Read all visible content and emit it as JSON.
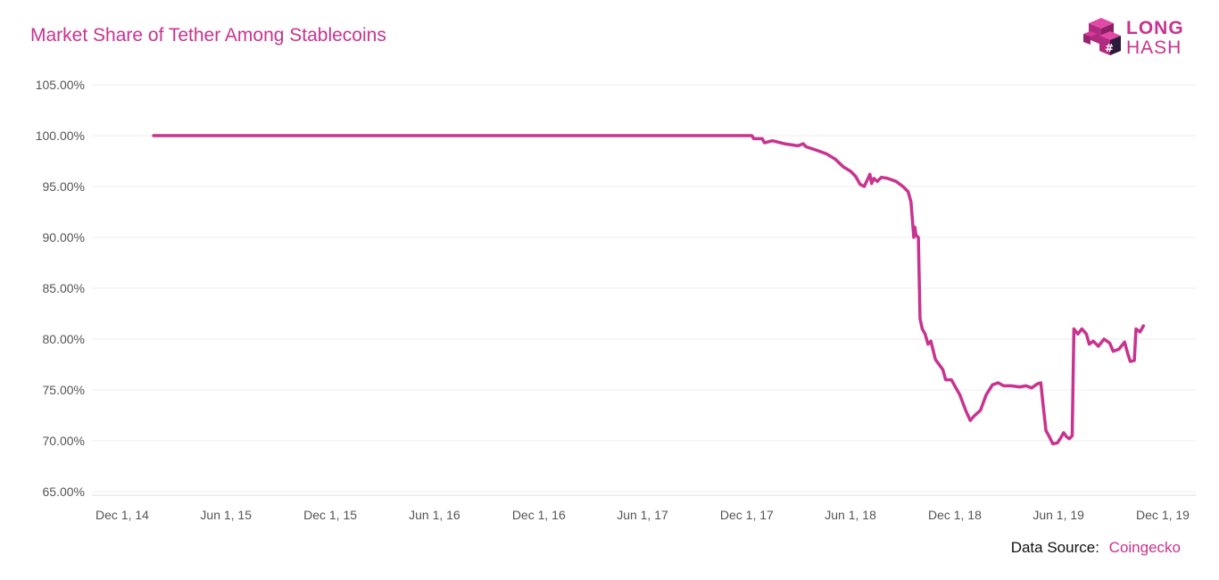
{
  "header": {
    "title": "Market Share of Tether Among Stablecoins"
  },
  "logo": {
    "line1": "LONG",
    "line2": "HASH",
    "icon": "cube-logo-icon",
    "color": "#c8338f"
  },
  "source": {
    "label": "Data Source:",
    "value": "Coingecko"
  },
  "chart_data": {
    "type": "line",
    "title": "Market Share of Tether Among Stablecoins",
    "xlabel": "",
    "ylabel": "",
    "xlim": [
      "2014-12-01",
      "2019-12-01"
    ],
    "ylim": [
      65,
      105
    ],
    "grid": true,
    "color": "#c8338f",
    "y_ticks": [
      {
        "value": 105,
        "label": "105.00%"
      },
      {
        "value": 100,
        "label": "100.00%"
      },
      {
        "value": 95,
        "label": "95.00%"
      },
      {
        "value": 90,
        "label": "90.00%"
      },
      {
        "value": 85,
        "label": "85.00%"
      },
      {
        "value": 80,
        "label": "80.00%"
      },
      {
        "value": 75,
        "label": "75.00%"
      },
      {
        "value": 70,
        "label": "70.00%"
      },
      {
        "value": 65,
        "label": "65.00%"
      }
    ],
    "x_ticks": [
      {
        "value": "2014-12-01",
        "label": "Dec 1, 14"
      },
      {
        "value": "2015-06-01",
        "label": "Jun 1, 15"
      },
      {
        "value": "2015-12-01",
        "label": "Dec 1, 15"
      },
      {
        "value": "2016-06-01",
        "label": "Jun 1, 16"
      },
      {
        "value": "2016-12-01",
        "label": "Dec 1, 16"
      },
      {
        "value": "2017-06-01",
        "label": "Jun 1, 17"
      },
      {
        "value": "2017-12-01",
        "label": "Dec 1, 17"
      },
      {
        "value": "2018-06-01",
        "label": "Jun 1, 18"
      },
      {
        "value": "2018-12-01",
        "label": "Dec 1, 18"
      },
      {
        "value": "2019-06-01",
        "label": "Jun 1, 19"
      },
      {
        "value": "2019-12-01",
        "label": "Dec 1, 19"
      }
    ],
    "series": [
      {
        "points": [
          [
            "2015-01-25",
            100.0
          ],
          [
            "2017-12-10",
            100.0
          ],
          [
            "2017-12-13",
            99.7
          ],
          [
            "2017-12-28",
            99.7
          ],
          [
            "2018-01-01",
            99.3
          ],
          [
            "2018-01-15",
            99.5
          ],
          [
            "2018-02-05",
            99.2
          ],
          [
            "2018-03-01",
            99.0
          ],
          [
            "2018-03-10",
            99.2
          ],
          [
            "2018-03-15",
            98.9
          ],
          [
            "2018-04-01",
            98.6
          ],
          [
            "2018-04-20",
            98.2
          ],
          [
            "2018-05-05",
            97.7
          ],
          [
            "2018-05-20",
            96.9
          ],
          [
            "2018-06-01",
            96.5
          ],
          [
            "2018-06-10",
            96.0
          ],
          [
            "2018-06-18",
            95.2
          ],
          [
            "2018-06-25",
            95.0
          ],
          [
            "2018-07-01",
            95.7
          ],
          [
            "2018-07-05",
            96.2
          ],
          [
            "2018-07-08",
            95.3
          ],
          [
            "2018-07-12",
            95.8
          ],
          [
            "2018-07-18",
            95.5
          ],
          [
            "2018-07-25",
            95.9
          ],
          [
            "2018-08-05",
            95.8
          ],
          [
            "2018-08-20",
            95.5
          ],
          [
            "2018-09-01",
            95.0
          ],
          [
            "2018-09-10",
            94.5
          ],
          [
            "2018-09-15",
            93.5
          ],
          [
            "2018-09-20",
            90.0
          ],
          [
            "2018-09-22",
            91.0
          ],
          [
            "2018-09-24",
            90.2
          ],
          [
            "2018-09-28",
            90.0
          ],
          [
            "2018-10-01",
            82.0
          ],
          [
            "2018-10-05",
            81.0
          ],
          [
            "2018-10-10",
            80.5
          ],
          [
            "2018-10-15",
            79.5
          ],
          [
            "2018-10-20",
            79.8
          ],
          [
            "2018-10-28",
            78.0
          ],
          [
            "2018-11-10",
            77.0
          ],
          [
            "2018-11-15",
            76.0
          ],
          [
            "2018-11-25",
            76.0
          ],
          [
            "2018-12-01",
            75.4
          ],
          [
            "2018-12-10",
            74.5
          ],
          [
            "2018-12-20",
            73.0
          ],
          [
            "2018-12-28",
            72.0
          ],
          [
            "2019-01-05",
            72.5
          ],
          [
            "2019-01-15",
            73.0
          ],
          [
            "2019-01-25",
            74.5
          ],
          [
            "2019-02-05",
            75.5
          ],
          [
            "2019-02-15",
            75.7
          ],
          [
            "2019-02-25",
            75.4
          ],
          [
            "2019-03-10",
            75.4
          ],
          [
            "2019-03-25",
            75.3
          ],
          [
            "2019-04-05",
            75.4
          ],
          [
            "2019-04-15",
            75.2
          ],
          [
            "2019-04-25",
            75.6
          ],
          [
            "2019-05-01",
            75.7
          ],
          [
            "2019-05-05",
            73.5
          ],
          [
            "2019-05-10",
            71.0
          ],
          [
            "2019-05-15",
            70.5
          ],
          [
            "2019-05-22",
            69.7
          ],
          [
            "2019-05-30",
            69.8
          ],
          [
            "2019-06-05",
            70.3
          ],
          [
            "2019-06-10",
            70.8
          ],
          [
            "2019-06-15",
            70.4
          ],
          [
            "2019-06-20",
            70.2
          ],
          [
            "2019-06-25",
            70.5
          ],
          [
            "2019-06-28",
            81.0
          ],
          [
            "2019-07-05",
            80.5
          ],
          [
            "2019-07-12",
            81.0
          ],
          [
            "2019-07-20",
            80.5
          ],
          [
            "2019-07-25",
            79.5
          ],
          [
            "2019-08-01",
            79.8
          ],
          [
            "2019-08-10",
            79.3
          ],
          [
            "2019-08-20",
            80.0
          ],
          [
            "2019-08-30",
            79.6
          ],
          [
            "2019-09-05",
            78.8
          ],
          [
            "2019-09-15",
            79.0
          ],
          [
            "2019-09-25",
            79.7
          ],
          [
            "2019-10-01",
            78.5
          ],
          [
            "2019-10-05",
            77.8
          ],
          [
            "2019-10-12",
            77.9
          ],
          [
            "2019-10-15",
            81.0
          ],
          [
            "2019-10-22",
            80.7
          ],
          [
            "2019-10-28",
            81.3
          ]
        ]
      }
    ]
  }
}
